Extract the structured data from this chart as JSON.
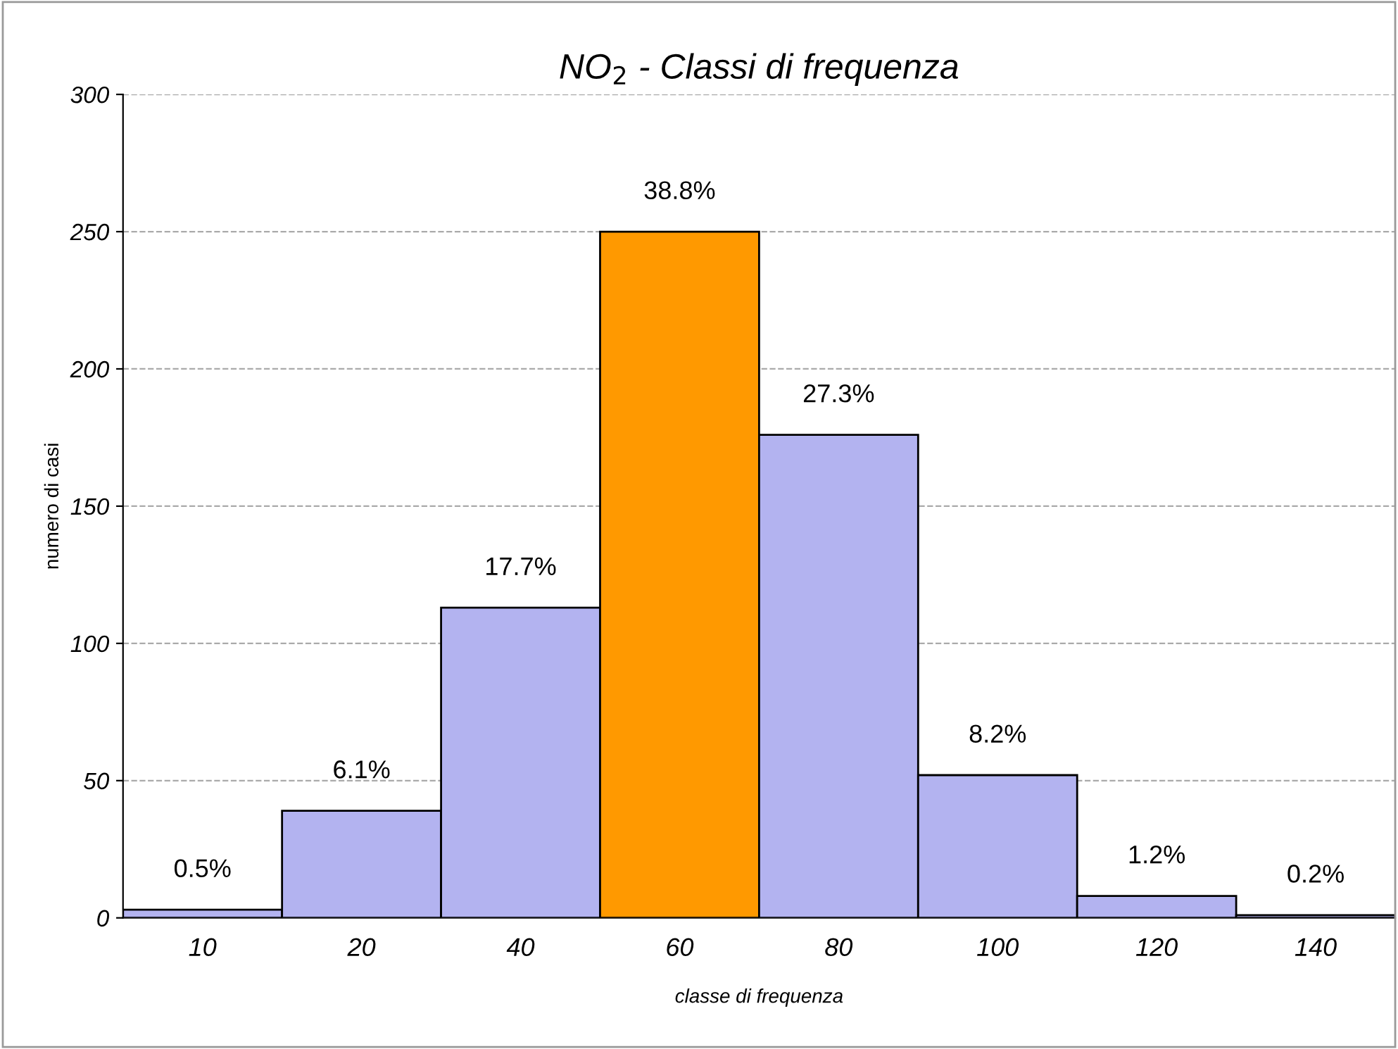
{
  "chart_data": {
    "type": "bar",
    "title": "NO$_{2}$ - Classi di frequenza",
    "xlabel": "classe di frequenza",
    "ylabel": "numero di casi",
    "categories": [
      "10",
      "20",
      "40",
      "60",
      "80",
      "100",
      "120",
      "140"
    ],
    "values": [
      3,
      39,
      113,
      250,
      176,
      52,
      8,
      1
    ],
    "annotations": [
      {
        "text": "0.5%",
        "x": "10",
        "y": 3
      },
      {
        "text": "6.1%",
        "x": "20",
        "y": 39
      },
      {
        "text": "17.7%",
        "x": "40",
        "y": 113
      },
      {
        "text": "38.8%",
        "x": "60",
        "y": 250
      },
      {
        "text": "27.3%",
        "x": "80",
        "y": 176
      },
      {
        "text": "8.2%",
        "x": "100",
        "y": 52
      },
      {
        "text": "1.2%",
        "x": "120",
        "y": 8
      },
      {
        "text": "0.2%",
        "x": "140",
        "y": 1
      }
    ],
    "colors": [
      "#b3b3f0",
      "#b3b3f0",
      "#b3b3f0",
      "#ff9900",
      "#b3b3f0",
      "#b3b3f0",
      "#b3b3f0",
      "#b3b3f0"
    ],
    "ylim": [
      0,
      300
    ],
    "yticks": [
      0,
      50,
      100,
      150,
      200,
      250,
      300
    ],
    "grid": "y",
    "line_style": "dashed",
    "legend": false
  }
}
